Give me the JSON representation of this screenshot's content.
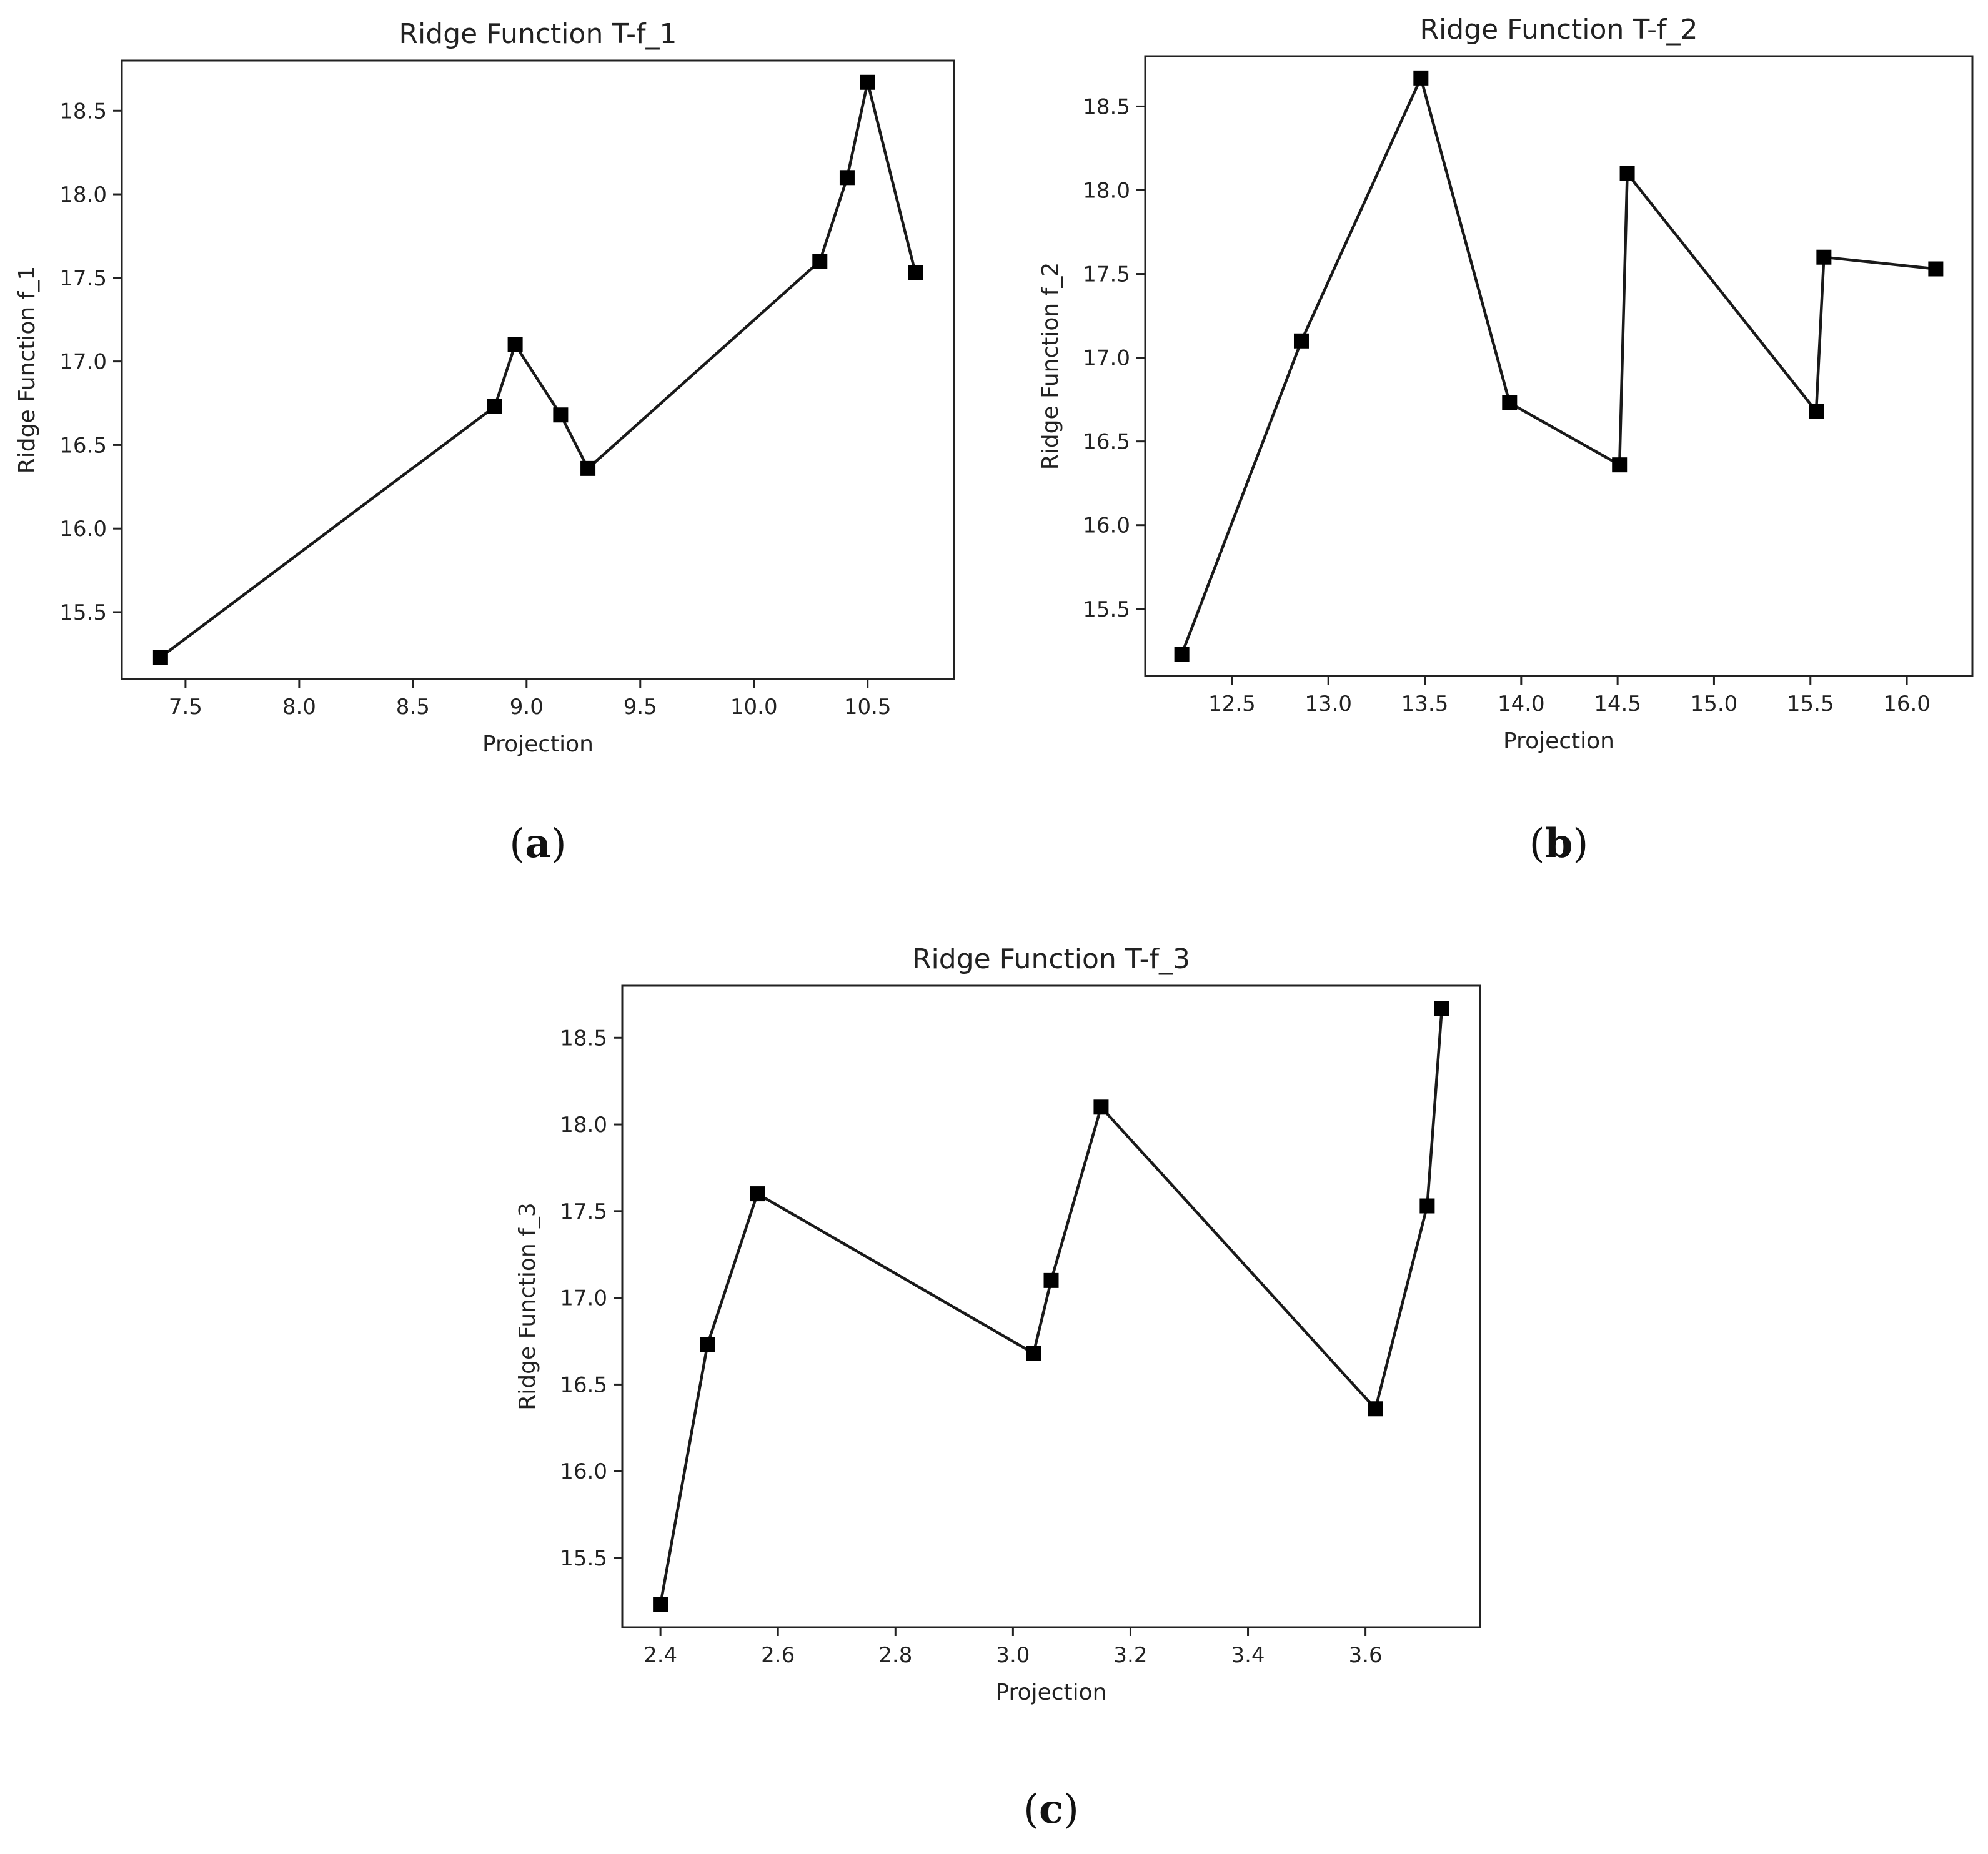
{
  "chart_data": [
    {
      "type": "line",
      "title": "Ridge Function T-f_1",
      "xlabel": "Projection",
      "ylabel": "Ridge Function f_1",
      "caption_letter": "a",
      "xlim": [
        7.22,
        10.88
      ],
      "ylim": [
        15.1,
        18.8
      ],
      "xticks": [
        7.5,
        8.0,
        8.5,
        9.0,
        9.5,
        10.0,
        10.5
      ],
      "xtick_labels": [
        "7.5",
        "8.0",
        "8.5",
        "9.0",
        "9.5",
        "10.0",
        "10.5"
      ],
      "yticks": [
        15.5,
        16.0,
        16.5,
        17.0,
        17.5,
        18.0,
        18.5
      ],
      "ytick_labels": [
        "15.5",
        "16.0",
        "16.5",
        "17.0",
        "17.5",
        "18.0",
        "18.5"
      ],
      "x": [
        7.39,
        8.86,
        8.95,
        9.15,
        9.27,
        10.29,
        10.41,
        10.5,
        10.71
      ],
      "y": [
        15.23,
        16.73,
        17.1,
        16.68,
        16.36,
        17.6,
        18.1,
        18.67,
        17.53
      ],
      "marker": "square",
      "color": "#000000",
      "grid": false
    },
    {
      "type": "line",
      "title": "Ridge Function T-f_2",
      "xlabel": "Projection",
      "ylabel": "Ridge Function f_2",
      "caption_letter": "b",
      "xlim": [
        12.05,
        16.34
      ],
      "ylim": [
        15.1,
        18.8
      ],
      "xticks": [
        12.5,
        13.0,
        13.5,
        14.0,
        14.5,
        15.0,
        15.5,
        16.0
      ],
      "xtick_labels": [
        "12.5",
        "13.0",
        "13.5",
        "14.0",
        "14.5",
        "15.0",
        "15.5",
        "16.0"
      ],
      "yticks": [
        15.5,
        16.0,
        16.5,
        17.0,
        17.5,
        18.0,
        18.5
      ],
      "ytick_labels": [
        "15.5",
        "16.0",
        "16.5",
        "17.0",
        "17.5",
        "18.0",
        "18.5"
      ],
      "x": [
        12.24,
        12.86,
        13.48,
        13.94,
        14.51,
        14.55,
        15.53,
        15.57,
        16.15
      ],
      "y": [
        15.23,
        17.1,
        18.67,
        16.73,
        16.36,
        18.1,
        16.68,
        17.6,
        17.53
      ],
      "marker": "square",
      "color": "#000000",
      "grid": false
    },
    {
      "type": "line",
      "title": "Ridge Function T-f_3",
      "xlabel": "Projection",
      "ylabel": "Ridge Function f_3",
      "caption_letter": "c",
      "xlim": [
        2.335,
        3.795
      ],
      "ylim": [
        15.1,
        18.8
      ],
      "xticks": [
        2.4,
        2.6,
        2.8,
        3.0,
        3.2,
        3.4,
        3.6
      ],
      "xtick_labels": [
        "2.4",
        "2.6",
        "2.8",
        "3.0",
        "3.2",
        "3.4",
        "3.6"
      ],
      "yticks": [
        15.5,
        16.0,
        16.5,
        17.0,
        17.5,
        18.0,
        18.5
      ],
      "ytick_labels": [
        "15.5",
        "16.0",
        "16.5",
        "17.0",
        "17.5",
        "18.0",
        "18.5"
      ],
      "x": [
        2.4,
        2.48,
        2.565,
        3.035,
        3.065,
        3.15,
        3.617,
        3.705,
        3.73
      ],
      "y": [
        15.23,
        16.73,
        17.6,
        16.68,
        17.1,
        18.1,
        16.36,
        17.53,
        18.67
      ],
      "marker": "square",
      "color": "#000000",
      "grid": false
    }
  ]
}
